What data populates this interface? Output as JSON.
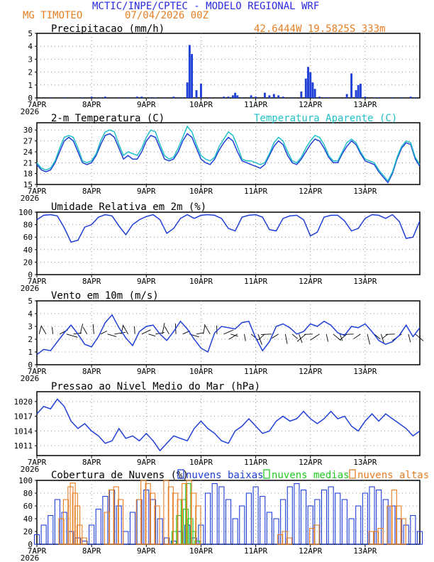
{
  "header": {
    "title": "MCTIC/INPE/CPTEC - MODELO REGIONAL WRF",
    "station": "MG TIMOTEO",
    "run": "07/04/2026 00Z",
    "location": "42.6444W  19.5825S  333m"
  },
  "colors": {
    "title": "#2a2adf",
    "orange": "#e67e22",
    "blue": "#1f3fd6",
    "cyan": "#20c0c8",
    "green": "#22cc22",
    "grid": "#777777"
  },
  "x_axis": {
    "ticks": [
      "7APR",
      "8APR",
      "9APR",
      "10APR",
      "11APR",
      "12APR",
      "13APR"
    ],
    "year": "2026",
    "range_hours": [
      0,
      168
    ]
  },
  "chart_data": [
    {
      "type": "bar",
      "title": "Precipitacao (mm/h)",
      "ylim": [
        0,
        5
      ],
      "yticks": [
        0,
        1,
        2,
        3,
        4,
        5
      ],
      "x": [
        6,
        12,
        20,
        24,
        28,
        30,
        36,
        40,
        44,
        46,
        50,
        52,
        56,
        60,
        62,
        64,
        66,
        67,
        68,
        70,
        72,
        76,
        82,
        84,
        86,
        87,
        88,
        90,
        94,
        96,
        100,
        102,
        104,
        106,
        108,
        112,
        116,
        118,
        119,
        120,
        121,
        122,
        124,
        126,
        128,
        136,
        138,
        140,
        141,
        142,
        144,
        148,
        150,
        156,
        160,
        164,
        166
      ],
      "values": [
        0.05,
        0.05,
        0.05,
        0.1,
        0.05,
        0.1,
        0.05,
        0.05,
        0.1,
        0.1,
        0.05,
        0.05,
        0.05,
        0.1,
        0.05,
        0.05,
        1.2,
        4.1,
        3.4,
        0.6,
        1.1,
        0.05,
        0.1,
        0.1,
        0.2,
        0.4,
        0.2,
        0.05,
        0.2,
        0.1,
        0.4,
        0.2,
        0.3,
        0.2,
        0.1,
        0.05,
        0.5,
        1.5,
        2.4,
        2.0,
        1.2,
        0.7,
        0.1,
        0.05,
        0.05,
        0.3,
        1.9,
        0.6,
        1.0,
        1.1,
        0.1,
        0.05,
        0.05,
        0.05,
        0.05,
        0.1,
        0.05
      ]
    },
    {
      "type": "line",
      "title": "2-m Temperatura (C)",
      "ylim": [
        15,
        32
      ],
      "yticks": [
        15,
        18,
        21,
        24,
        27,
        30
      ],
      "series": [
        {
          "name": "",
          "color": "#1f3fd6",
          "x": [
            0,
            2,
            4,
            6,
            8,
            10,
            12,
            14,
            16,
            18,
            20,
            22,
            24,
            26,
            28,
            30,
            32,
            34,
            36,
            38,
            40,
            42,
            44,
            46,
            48,
            50,
            52,
            54,
            56,
            58,
            60,
            62,
            64,
            66,
            68,
            70,
            72,
            74,
            76,
            78,
            80,
            82,
            84,
            86,
            88,
            90,
            92,
            94,
            96,
            98,
            100,
            102,
            104,
            106,
            108,
            110,
            112,
            114,
            116,
            118,
            120,
            122,
            124,
            126,
            128,
            130,
            132,
            134,
            136,
            138,
            140,
            142,
            144,
            146,
            148,
            150,
            152,
            154,
            156,
            158,
            160,
            162,
            164,
            166,
            168
          ],
          "values": [
            20.5,
            19,
            18.5,
            19,
            21,
            24,
            27,
            28,
            27,
            24,
            21,
            20.5,
            21,
            23,
            26,
            28.5,
            29,
            28,
            25,
            22,
            23,
            22,
            22,
            24,
            27,
            28.5,
            28,
            25,
            22,
            21.5,
            22,
            24,
            27,
            29,
            28,
            25,
            22,
            21,
            20.5,
            22,
            24.5,
            26.5,
            28,
            27,
            24,
            21.5,
            21,
            20.5,
            20,
            19.5,
            20.5,
            23,
            25.5,
            27,
            26,
            23,
            21,
            20.5,
            22,
            24,
            26,
            27.5,
            27,
            25,
            22.5,
            21,
            21,
            23.5,
            25.5,
            27,
            26,
            23.5,
            21.5,
            21,
            20.5,
            18.5,
            17,
            15.5,
            18,
            22,
            25,
            26.5,
            26,
            22,
            20
          ]
        },
        {
          "name": "Temperatura Aparente (C)",
          "color": "#20c0c8",
          "x": [
            0,
            2,
            4,
            6,
            8,
            10,
            12,
            14,
            16,
            18,
            20,
            22,
            24,
            26,
            28,
            30,
            32,
            34,
            36,
            38,
            40,
            42,
            44,
            46,
            48,
            50,
            52,
            54,
            56,
            58,
            60,
            62,
            64,
            66,
            68,
            70,
            72,
            74,
            76,
            78,
            80,
            82,
            84,
            86,
            88,
            90,
            92,
            94,
            96,
            98,
            100,
            102,
            104,
            106,
            108,
            110,
            112,
            114,
            116,
            118,
            120,
            122,
            124,
            126,
            128,
            130,
            132,
            134,
            136,
            138,
            140,
            142,
            144,
            146,
            148,
            150,
            152,
            154,
            156,
            158,
            160,
            162,
            164,
            166,
            168
          ],
          "values": [
            21,
            19.5,
            19,
            19.5,
            21.5,
            25,
            28,
            28.5,
            28,
            25,
            21.5,
            21,
            21.5,
            23.5,
            27,
            29.5,
            30,
            29.5,
            26,
            23,
            24,
            23.5,
            23,
            25,
            28,
            30,
            29.5,
            26,
            23,
            22,
            22.5,
            25,
            28,
            31,
            29.5,
            26,
            23,
            22,
            21.5,
            22.5,
            25.5,
            27.5,
            29.5,
            28.5,
            25.5,
            22,
            21.5,
            21.5,
            21,
            20.5,
            21,
            23.5,
            26.5,
            28,
            27,
            24,
            21.5,
            21,
            22.5,
            25,
            27,
            28.5,
            28,
            26,
            23,
            21.5,
            21.5,
            24,
            26.5,
            27.5,
            26.5,
            24,
            22,
            21.5,
            21,
            19,
            17.5,
            16,
            18.5,
            22.5,
            25.5,
            27,
            26.5,
            22.5,
            20.5
          ]
        }
      ]
    },
    {
      "type": "line",
      "title": "Umidade Relativa em 2m (%)",
      "ylim": [
        0,
        100
      ],
      "yticks": [
        0,
        20,
        40,
        60,
        80,
        100
      ],
      "series": [
        {
          "name": "",
          "color": "#1f3fd6",
          "x": [
            0,
            3,
            6,
            9,
            12,
            15,
            18,
            21,
            24,
            27,
            30,
            33,
            36,
            39,
            42,
            45,
            48,
            51,
            54,
            57,
            60,
            63,
            66,
            69,
            72,
            75,
            78,
            81,
            84,
            87,
            90,
            93,
            96,
            99,
            102,
            105,
            108,
            111,
            114,
            117,
            120,
            123,
            126,
            129,
            132,
            135,
            138,
            141,
            144,
            147,
            150,
            153,
            156,
            159,
            162,
            165,
            168
          ],
          "values": [
            88,
            95,
            96,
            94,
            75,
            52,
            55,
            76,
            80,
            92,
            96,
            94,
            78,
            64,
            80,
            88,
            93,
            96,
            88,
            66,
            74,
            90,
            96,
            90,
            95,
            96,
            95,
            90,
            74,
            70,
            92,
            95,
            96,
            92,
            72,
            70,
            90,
            94,
            95,
            88,
            62,
            68,
            92,
            95,
            95,
            86,
            70,
            74,
            90,
            96,
            95,
            90,
            96,
            85,
            58,
            60,
            86
          ]
        }
      ]
    },
    {
      "type": "line",
      "title": "Vento em 10m (m/s)",
      "ylim": [
        0,
        5
      ],
      "yticks": [
        0,
        1,
        2,
        3,
        4,
        5
      ],
      "series": [
        {
          "name": "",
          "color": "#1f3fd6",
          "x": [
            0,
            3,
            6,
            9,
            12,
            15,
            18,
            21,
            24,
            27,
            30,
            33,
            36,
            39,
            42,
            45,
            48,
            51,
            54,
            57,
            60,
            63,
            66,
            69,
            72,
            75,
            78,
            81,
            84,
            87,
            90,
            93,
            96,
            99,
            102,
            105,
            108,
            111,
            114,
            117,
            120,
            123,
            126,
            129,
            132,
            135,
            138,
            141,
            144,
            147,
            150,
            153,
            156,
            159,
            162,
            165,
            168
          ],
          "values": [
            0.8,
            1.2,
            1.1,
            1.8,
            2.5,
            3.1,
            2.4,
            1.6,
            1.4,
            2.2,
            3.3,
            3.9,
            2.9,
            2.1,
            1.5,
            2.6,
            3.0,
            3.1,
            2.4,
            1.9,
            2.6,
            3.4,
            2.8,
            2.0,
            1.3,
            1.0,
            2.5,
            3.0,
            2.9,
            2.8,
            3.3,
            3.4,
            2.1,
            1.1,
            1.8,
            3.0,
            3.2,
            2.9,
            2.4,
            2.6,
            3.2,
            3.0,
            3.4,
            3.1,
            2.5,
            2.3,
            3.0,
            2.9,
            3.2,
            2.6,
            1.9,
            1.6,
            1.8,
            2.3,
            3.1,
            2.2,
            2.9
          ]
        }
      ]
    },
    {
      "type": "line",
      "title": "Pressao ao Nivel Medio do Mar (hPa)",
      "ylim": [
        1009,
        1022
      ],
      "yticks": [
        1011,
        1014,
        1017,
        1020
      ],
      "series": [
        {
          "name": "",
          "color": "#1f3fd6",
          "x": [
            0,
            3,
            6,
            9,
            12,
            15,
            18,
            21,
            24,
            27,
            30,
            33,
            36,
            39,
            42,
            45,
            48,
            51,
            54,
            57,
            60,
            63,
            66,
            69,
            72,
            75,
            78,
            81,
            84,
            87,
            90,
            93,
            96,
            99,
            102,
            105,
            108,
            111,
            114,
            117,
            120,
            123,
            126,
            129,
            132,
            135,
            138,
            141,
            144,
            147,
            150,
            153,
            156,
            159,
            162,
            165,
            168
          ],
          "values": [
            1017.5,
            1019,
            1018.5,
            1020.5,
            1019,
            1016,
            1014.5,
            1015.5,
            1014,
            1013,
            1011.5,
            1012,
            1014.5,
            1012.5,
            1013,
            1012,
            1013.5,
            1012,
            1010,
            1011.5,
            1013,
            1012.5,
            1012,
            1014.5,
            1016,
            1014.5,
            1013.5,
            1012,
            1011.5,
            1014,
            1015,
            1016.5,
            1015,
            1013.5,
            1014,
            1016,
            1017,
            1016,
            1016.5,
            1018,
            1016.5,
            1015.5,
            1016.5,
            1018,
            1016.5,
            1017,
            1015,
            1014,
            1016,
            1017.5,
            1016,
            1017.5,
            1016.5,
            1015.5,
            1014.5,
            1013,
            1014
          ]
        }
      ]
    },
    {
      "type": "bar",
      "title": "Cobertura de Nuvens (%)",
      "ylim": [
        0,
        100
      ],
      "yticks": [
        0,
        20,
        40,
        60,
        80,
        100
      ],
      "legend": [
        "nuvens baixas",
        "nuvens medias",
        "nuvens altas"
      ],
      "series": [
        {
          "name": "nuvens baixas",
          "color": "#1f3fd6",
          "x": [
            0,
            3,
            6,
            9,
            12,
            15,
            18,
            21,
            24,
            27,
            30,
            33,
            36,
            39,
            42,
            45,
            48,
            51,
            54,
            57,
            60,
            63,
            66,
            69,
            72,
            75,
            78,
            81,
            84,
            87,
            90,
            93,
            96,
            99,
            102,
            105,
            108,
            111,
            114,
            117,
            120,
            123,
            126,
            129,
            132,
            135,
            138,
            141,
            144,
            147,
            150,
            153,
            156,
            159,
            162,
            165,
            168
          ],
          "values": [
            15,
            30,
            45,
            70,
            50,
            20,
            10,
            5,
            30,
            55,
            75,
            85,
            60,
            20,
            50,
            70,
            85,
            70,
            40,
            10,
            5,
            20,
            30,
            10,
            30,
            80,
            95,
            90,
            70,
            40,
            60,
            80,
            90,
            75,
            50,
            40,
            70,
            90,
            95,
            85,
            60,
            70,
            85,
            90,
            80,
            70,
            40,
            60,
            80,
            90,
            85,
            70,
            60,
            40,
            30,
            45,
            20
          ]
        },
        {
          "name": "nuvens medias",
          "color": "#22cc22",
          "x": [
            60,
            62,
            64,
            65,
            66,
            67,
            68,
            70
          ],
          "values": [
            20,
            45,
            70,
            55,
            95,
            40,
            20,
            5
          ]
        },
        {
          "name": "nuvens altas",
          "color": "#e67e22",
          "x": [
            10,
            12,
            14,
            15,
            16,
            17,
            18,
            20,
            30,
            32,
            34,
            36,
            44,
            46,
            48,
            50,
            52,
            56,
            58,
            60,
            62,
            64,
            66,
            68,
            70,
            106,
            108,
            110,
            120,
            122,
            146,
            148,
            150,
            154,
            156,
            158,
            160
          ],
          "values": [
            40,
            70,
            90,
            96,
            80,
            60,
            30,
            10,
            50,
            85,
            90,
            70,
            70,
            100,
            95,
            80,
            60,
            100,
            90,
            80,
            70,
            95,
            100,
            80,
            60,
            15,
            20,
            10,
            25,
            30,
            20,
            20,
            25,
            60,
            85,
            60,
            40
          ]
        }
      ]
    }
  ]
}
